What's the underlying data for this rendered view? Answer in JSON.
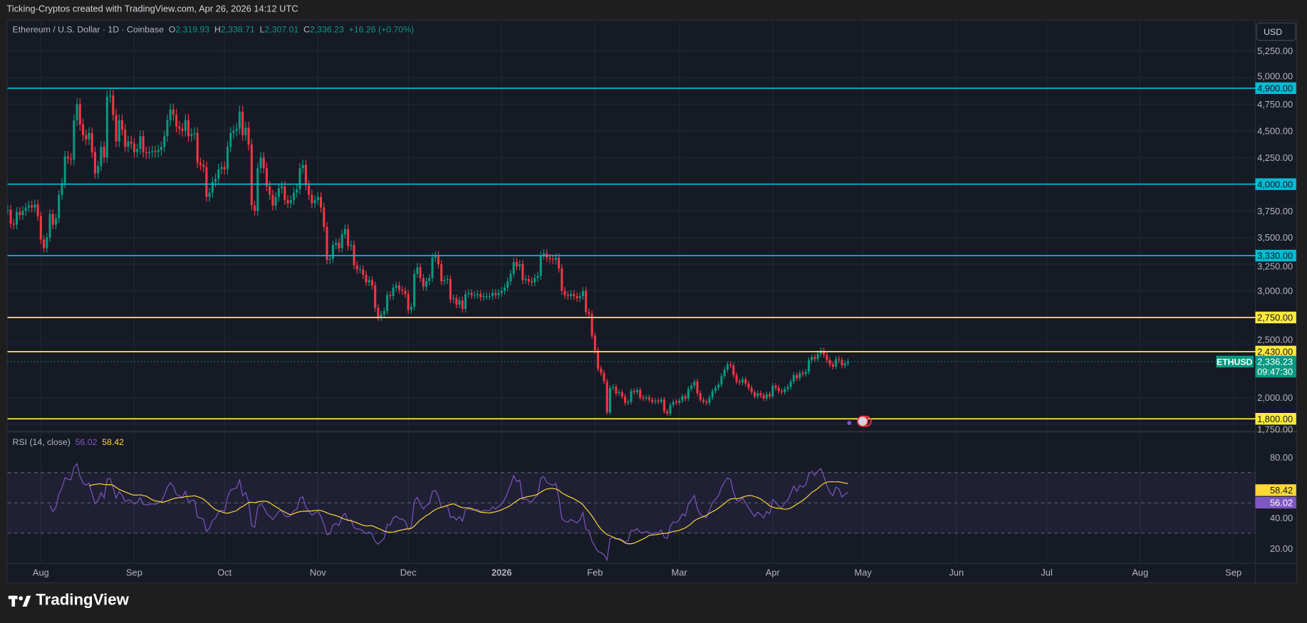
{
  "header": {
    "attribution": "Ticking-Cryptos created with TradingView.com, Apr 26, 2026 14:12 UTC"
  },
  "legend": {
    "symbol_desc": "Ethereum / U.S. Dollar · 1D · Coinbase",
    "open_label": "O",
    "open": "2,319.93",
    "high_label": "H",
    "high": "2,338.71",
    "low_label": "L",
    "low": "2,307.01",
    "close_label": "C",
    "close": "2,336.23",
    "change": "+16.26 (+0.70%)"
  },
  "currency_button": "USD",
  "rsi_legend": {
    "label": "RSI (14, close)",
    "rsi": "56.02",
    "ma": "58.42"
  },
  "footer": {
    "brand": "TradingView"
  },
  "colors": {
    "up": "#089981",
    "down": "#f23645",
    "cyan_level": "#00bcd4",
    "yellow_level": "#ffeb3b",
    "rsi": "#7e57c2",
    "rsi_ma": "#fdd835",
    "background": "#161a25"
  },
  "chart_data": {
    "type": "candlestick",
    "symbol": "ETHUSD",
    "interval": "1D",
    "start_date": "2025-07-21",
    "closes": [
      3760,
      3630,
      3620,
      3740,
      3710,
      3750,
      3780,
      3800,
      3780,
      3810,
      3700,
      3480,
      3400,
      3500,
      3720,
      3620,
      3680,
      3900,
      4010,
      4260,
      4240,
      4230,
      4600,
      4750,
      4560,
      4460,
      4420,
      4480,
      4300,
      4100,
      4170,
      4350,
      4250,
      4820,
      4830,
      4650,
      4400,
      4600,
      4510,
      4350,
      4400,
      4380,
      4300,
      4330,
      4450,
      4300,
      4290,
      4300,
      4310,
      4300,
      4320,
      4350,
      4450,
      4600,
      4700,
      4650,
      4540,
      4520,
      4500,
      4600,
      4450,
      4470,
      4480,
      4200,
      4180,
      4160,
      3880,
      3920,
      4020,
      4050,
      4140,
      4160,
      4140,
      4350,
      4480,
      4500,
      4520,
      4680,
      4460,
      4530,
      4370,
      3800,
      3750,
      4150,
      4250,
      4150,
      3980,
      3900,
      3800,
      3880,
      3960,
      3980,
      3850,
      3820,
      3850,
      3920,
      3950,
      4150,
      4180,
      3990,
      3900,
      3820,
      3850,
      3880,
      3780,
      3600,
      3290,
      3300,
      3430,
      3450,
      3400,
      3530,
      3580,
      3420,
      3430,
      3240,
      3200,
      3200,
      3150,
      3080,
      3100,
      3050,
      2840,
      2750,
      2780,
      2810,
      2960,
      2950,
      3030,
      3050,
      3010,
      3000,
      2970,
      2820,
      2850,
      3160,
      3220,
      3120,
      3040,
      3090,
      3120,
      3310,
      3330,
      3250,
      3090,
      3100,
      3110,
      2920,
      2930,
      2870,
      2910,
      2830,
      2970,
      2980,
      2960,
      2960,
      2970,
      2940,
      2950,
      2950,
      2950,
      2980,
      2960,
      2980,
      3000,
      3030,
      3090,
      3160,
      3270,
      3230,
      3250,
      3100,
      3110,
      3090,
      3080,
      3120,
      3140,
      3330,
      3350,
      3310,
      3300,
      3290,
      3310,
      3210,
      3000,
      2960,
      2950,
      2970,
      2950,
      2930,
      2950,
      3000,
      2800,
      2780,
      2580,
      2440,
      2270,
      2230,
      2150,
      1860,
      2090,
      2100,
      2040,
      2050,
      2010,
      1950,
      1960,
      2060,
      2050,
      2070,
      2000,
      1990,
      2000,
      1980,
      1960,
      1970,
      1960,
      1980,
      1870,
      1850,
      1930,
      1960,
      1950,
      1970,
      2010,
      1990,
      2080,
      2110,
      2150,
      2040,
      1980,
      1960,
      1950,
      2000,
      2060,
      2090,
      2120,
      2200,
      2260,
      2310,
      2300,
      2210,
      2150,
      2140,
      2170,
      2130,
      2090,
      2050,
      2010,
      2040,
      2020,
      1990,
      2030,
      2010,
      2110,
      2090,
      2060,
      2050,
      2080,
      2100,
      2150,
      2210,
      2180,
      2230,
      2220,
      2240,
      2350,
      2380,
      2360,
      2410,
      2440,
      2400,
      2350,
      2310,
      2290,
      2360,
      2350,
      2300,
      2320,
      2336.23
    ],
    "last_price": "2,336.23",
    "countdown": "09:47:30",
    "horizontal_levels": [
      {
        "value": 4900,
        "label": "4,900.00",
        "color": "#00bcd4"
      },
      {
        "value": 4000,
        "label": "4,000.00",
        "color": "#00bcd4"
      },
      {
        "value": 3330,
        "label": "3,330.00",
        "color": "#00bcd4"
      },
      {
        "value": 2750,
        "label": "2,750.00",
        "color": "#ffeb3b"
      },
      {
        "value": 2430,
        "label": "2,430.00",
        "color": "#ffeb3b"
      },
      {
        "value": 1800,
        "label": "1,800.00",
        "color": "#ffeb3b"
      }
    ],
    "price_ticks": [
      "5,250.00",
      "5,000.00",
      "4,750.00",
      "4,500.00",
      "4,250.00",
      "3,750.00",
      "3,500.00",
      "3,250.00",
      "3,000.00",
      "2,500.00",
      "2,000.00",
      "1,750.00"
    ],
    "price_tick_values": [
      5250,
      5000,
      4750,
      4500,
      4250,
      3750,
      3500,
      3250,
      3000,
      2500,
      2000,
      1750
    ],
    "ylim": [
      1690,
      5400
    ],
    "x_labels": [
      "Aug",
      "Sep",
      "Oct",
      "Nov",
      "Dec",
      "2026",
      "Feb",
      "Mar",
      "Apr",
      "May",
      "Jun",
      "Jul",
      "Aug",
      "Sep"
    ],
    "x_label_dates": [
      "2025-08-01",
      "2025-09-01",
      "2025-10-01",
      "2025-11-01",
      "2025-12-01",
      "2026-01-01",
      "2026-02-01",
      "2026-03-01",
      "2026-04-01",
      "2026-05-01",
      "2026-06-01",
      "2026-07-01",
      "2026-08-01",
      "2026-09-01"
    ],
    "rsi": {
      "period": 14,
      "ma_period": 14,
      "bands": [
        70,
        50,
        30
      ],
      "ticks": [
        "80.00",
        "40.00",
        "20.00"
      ],
      "tick_values": [
        80,
        40,
        20
      ],
      "last_rsi": "56.02",
      "last_ma": "58.42"
    }
  }
}
